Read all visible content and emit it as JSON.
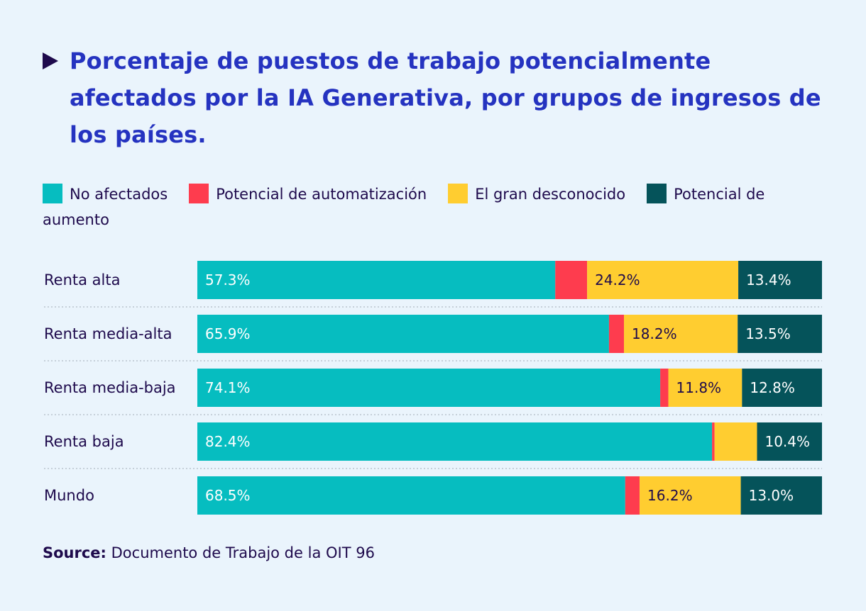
{
  "title": "Porcentaje de puestos de trabajo potencialmente afectados por la IA Generativa, por grupos de ingresos de los países.",
  "source_label": "Source:",
  "source_text": "Documento de Trabajo de la OIT 96",
  "chart_data": {
    "type": "bar",
    "orientation": "horizontal",
    "stacked": true,
    "title": "Porcentaje de puestos de trabajo potencialmente afectados por la IA Generativa, por grupos de ingresos de los países.",
    "xlim": [
      0,
      100
    ],
    "legend_position": "top",
    "categories": [
      "Renta alta",
      "Renta media-alta",
      "Renta media-baja",
      "Renta baja",
      "Mundo"
    ],
    "series": [
      {
        "name": "No afectados",
        "color": "#06bdc0",
        "label_color": "#ffffff",
        "values": [
          57.3,
          65.9,
          74.1,
          82.4,
          68.5
        ],
        "labels": [
          "57.3%",
          "65.9%",
          "74.1%",
          "82.4%",
          "68.5%"
        ]
      },
      {
        "name": "Potencial de automatización",
        "color": "#fe3c4e",
        "label_color": "#ffffff",
        "values": [
          5.1,
          2.4,
          1.3,
          0.4,
          2.3
        ],
        "labels": [
          "",
          "",
          "",
          "",
          ""
        ]
      },
      {
        "name": "El gran desconocido",
        "color": "#ffcd30",
        "label_color": "#1e0a4c",
        "values": [
          24.2,
          18.2,
          11.8,
          6.8,
          16.2
        ],
        "labels": [
          "24.2%",
          "18.2%",
          "11.8%",
          "",
          "16.2%"
        ]
      },
      {
        "name": "Potencial de aumento",
        "color": "#05535a",
        "label_color": "#ffffff",
        "values": [
          13.4,
          13.5,
          12.8,
          10.4,
          13.0
        ],
        "labels": [
          "13.4%",
          "13.5%",
          "12.8%",
          "10.4%",
          "13.0%"
        ]
      }
    ]
  }
}
